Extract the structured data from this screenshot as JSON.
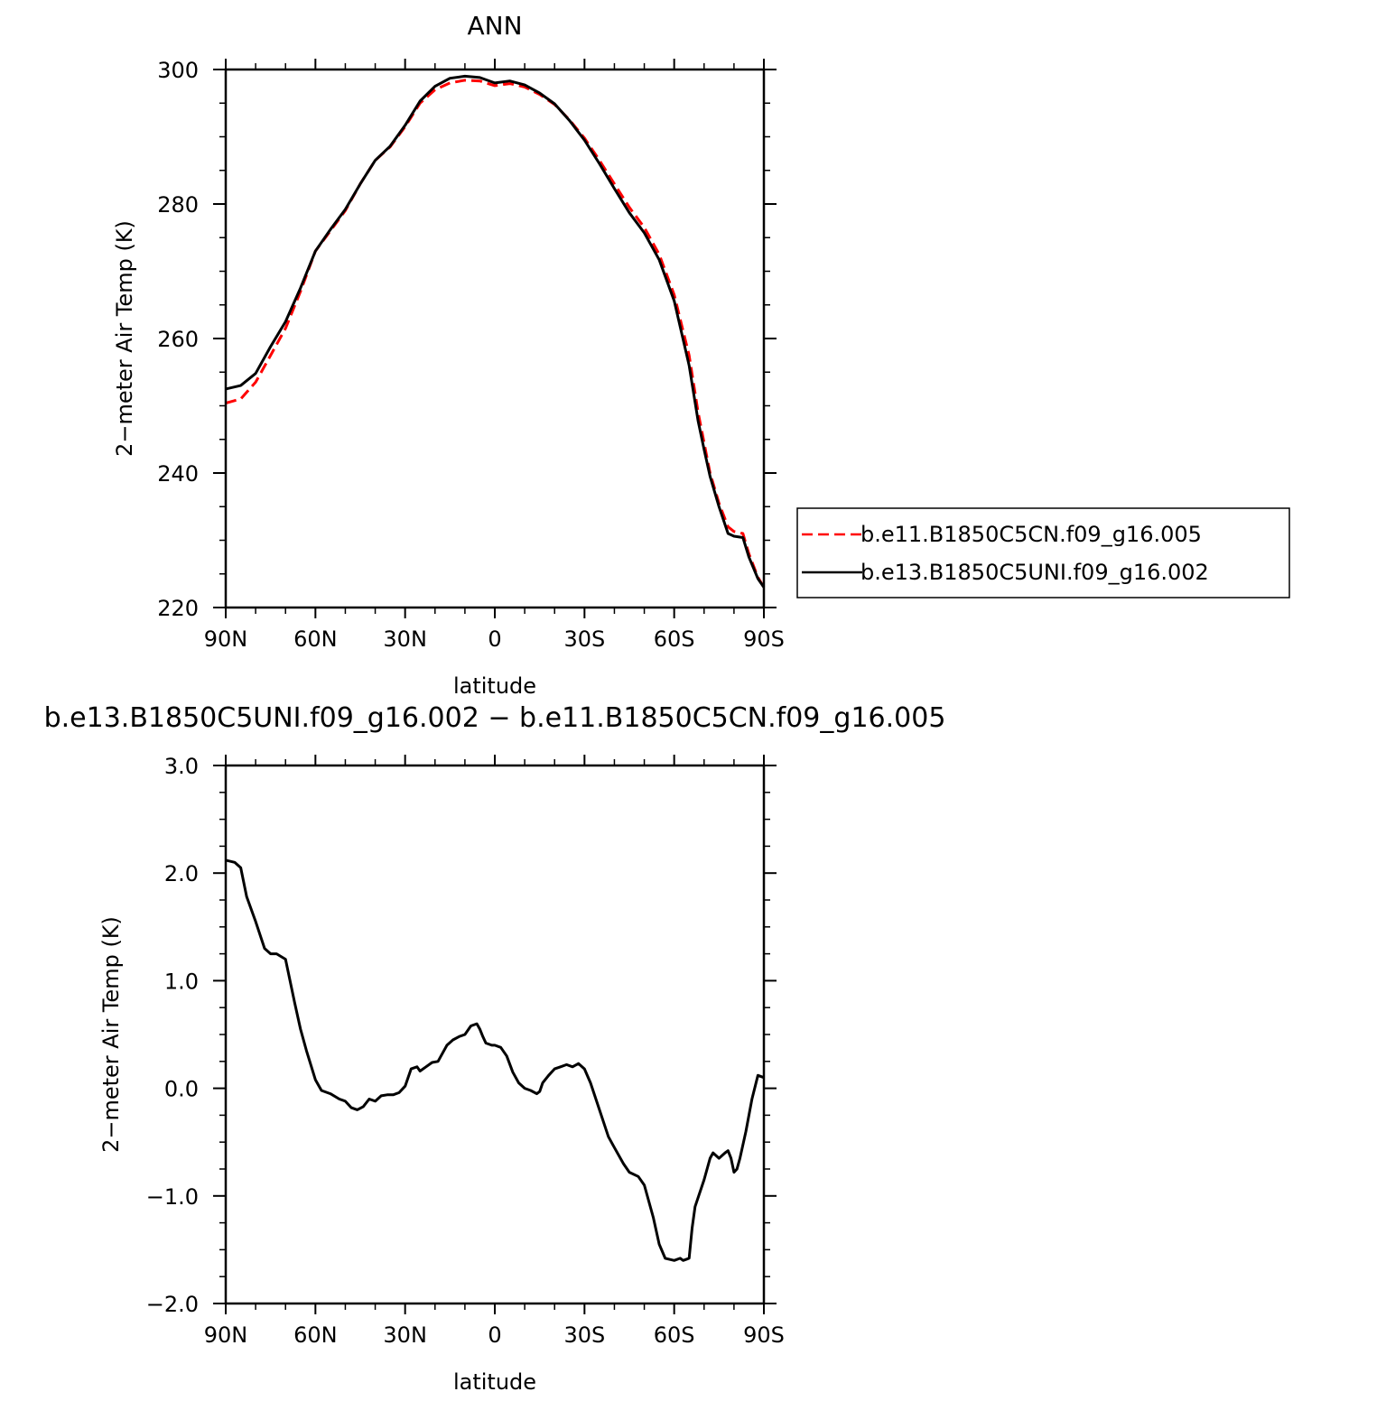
{
  "chart_data": [
    {
      "type": "line",
      "title": "ANN",
      "xlabel": "latitude",
      "ylabel": "2−meter Air Temp (K)",
      "xlim": [
        90,
        -90
      ],
      "ylim": [
        220,
        300
      ],
      "x_ticks": [
        {
          "value": 90,
          "label": "90N"
        },
        {
          "value": 60,
          "label": "60N"
        },
        {
          "value": 30,
          "label": "30N"
        },
        {
          "value": 0,
          "label": "0"
        },
        {
          "value": -30,
          "label": "30S"
        },
        {
          "value": -60,
          "label": "60S"
        },
        {
          "value": -90,
          "label": "90S"
        }
      ],
      "y_ticks": [
        {
          "value": 300,
          "label": "300"
        },
        {
          "value": 280,
          "label": "280"
        },
        {
          "value": 260,
          "label": "260"
        },
        {
          "value": 240,
          "label": "240"
        },
        {
          "value": 220,
          "label": "220"
        }
      ],
      "legend_position": "right",
      "series": [
        {
          "name": "b.e11.B1850C5CN.f09_g16.005",
          "color": "#ff0000",
          "dash": "dashed",
          "x": [
            90,
            85,
            80,
            75,
            70,
            65,
            60,
            55,
            50,
            45,
            40,
            35,
            30,
            25,
            20,
            15,
            10,
            5,
            0,
            -5,
            -10,
            -15,
            -20,
            -25,
            -30,
            -35,
            -40,
            -45,
            -50,
            -55,
            -60,
            -65,
            -68,
            -70,
            -72,
            -75,
            -78,
            -80,
            -83,
            -85,
            -88,
            -90
          ],
          "y": [
            250.4,
            251.0,
            253.5,
            257.5,
            261.5,
            267.0,
            273.0,
            276.0,
            279.0,
            283.0,
            286.5,
            288.5,
            291.5,
            295.0,
            297.0,
            298.0,
            298.4,
            298.3,
            297.6,
            297.9,
            297.4,
            296.3,
            294.8,
            292.5,
            289.8,
            286.5,
            283.0,
            279.5,
            276.5,
            272.5,
            266.5,
            257.5,
            249.0,
            244.5,
            240.0,
            235.5,
            232.0,
            231.3,
            231.0,
            228.0,
            224.5,
            223.0
          ]
        },
        {
          "name": "b.e13.B1850C5UNI.f09_g16.002",
          "color": "#000000",
          "dash": "solid",
          "x": [
            90,
            85,
            80,
            75,
            70,
            65,
            60,
            55,
            50,
            45,
            40,
            35,
            30,
            25,
            20,
            15,
            10,
            5,
            0,
            -5,
            -10,
            -15,
            -20,
            -25,
            -30,
            -35,
            -40,
            -45,
            -50,
            -55,
            -60,
            -65,
            -68,
            -70,
            -72,
            -75,
            -78,
            -80,
            -83,
            -85,
            -88,
            -90
          ],
          "y": [
            252.5,
            253.0,
            254.8,
            258.8,
            262.5,
            267.5,
            273.0,
            276.2,
            279.2,
            283.0,
            286.5,
            288.6,
            291.7,
            295.3,
            297.5,
            298.7,
            299.0,
            298.8,
            298.0,
            298.3,
            297.7,
            296.5,
            294.9,
            292.4,
            289.5,
            286.0,
            282.3,
            278.7,
            275.7,
            271.7,
            265.6,
            256.0,
            247.7,
            243.5,
            239.5,
            235.0,
            231.0,
            230.6,
            230.4,
            227.5,
            224.3,
            223.0
          ]
        }
      ]
    },
    {
      "type": "line",
      "title": "b.e13.B1850C5UNI.f09_g16.002 − b.e11.B1850C5CN.f09_g16.005",
      "xlabel": "latitude",
      "ylabel": "2−meter Air Temp (K)",
      "xlim": [
        90,
        -90
      ],
      "ylim": [
        -2.0,
        3.0
      ],
      "x_ticks": [
        {
          "value": 90,
          "label": "90N"
        },
        {
          "value": 60,
          "label": "60N"
        },
        {
          "value": 30,
          "label": "30N"
        },
        {
          "value": 0,
          "label": "0"
        },
        {
          "value": -30,
          "label": "30S"
        },
        {
          "value": -60,
          "label": "60S"
        },
        {
          "value": -90,
          "label": "90S"
        }
      ],
      "y_ticks": [
        {
          "value": 3.0,
          "label": "3.0"
        },
        {
          "value": 2.0,
          "label": "2.0"
        },
        {
          "value": 1.0,
          "label": "1.0"
        },
        {
          "value": 0.0,
          "label": "0.0"
        },
        {
          "value": -1.0,
          "label": "−1.0"
        },
        {
          "value": -2.0,
          "label": "−2.0"
        }
      ],
      "series": [
        {
          "color": "#000000",
          "dash": "solid",
          "x": [
            90,
            87,
            85,
            83,
            80,
            77,
            75,
            73,
            70,
            67,
            65,
            63,
            60,
            58,
            55,
            52,
            50,
            48,
            46,
            44,
            42,
            40,
            38,
            36,
            34,
            32,
            30,
            28,
            26,
            25,
            23,
            21,
            19,
            18,
            16,
            14,
            12,
            10,
            8,
            6,
            5,
            4,
            3,
            1,
            0,
            -2,
            -4,
            -6,
            -8,
            -10,
            -12,
            -14,
            -15,
            -16,
            -18,
            -20,
            -22,
            -24,
            -26,
            -28,
            -30,
            -32,
            -35,
            -38,
            -40,
            -43,
            -45,
            -48,
            -50,
            -53,
            -55,
            -57,
            -60,
            -62,
            -63,
            -65,
            -66,
            -67,
            -70,
            -72,
            -73,
            -75,
            -77,
            -78,
            -79,
            -80,
            -81,
            -82,
            -84,
            -86,
            -88,
            -90
          ],
          "y": [
            2.12,
            2.1,
            2.05,
            1.78,
            1.55,
            1.3,
            1.25,
            1.25,
            1.2,
            0.8,
            0.55,
            0.35,
            0.08,
            -0.02,
            -0.05,
            -0.1,
            -0.12,
            -0.18,
            -0.2,
            -0.17,
            -0.1,
            -0.12,
            -0.07,
            -0.06,
            -0.06,
            -0.04,
            0.02,
            0.18,
            0.2,
            0.16,
            0.2,
            0.24,
            0.25,
            0.3,
            0.4,
            0.45,
            0.48,
            0.5,
            0.58,
            0.6,
            0.55,
            0.48,
            0.42,
            0.4,
            0.4,
            0.38,
            0.3,
            0.15,
            0.05,
            0.0,
            -0.02,
            -0.05,
            -0.03,
            0.05,
            0.12,
            0.18,
            0.2,
            0.22,
            0.2,
            0.23,
            0.18,
            0.05,
            -0.2,
            -0.45,
            -0.55,
            -0.7,
            -0.78,
            -0.82,
            -0.9,
            -1.2,
            -1.45,
            -1.58,
            -1.6,
            -1.58,
            -1.6,
            -1.58,
            -1.3,
            -1.1,
            -0.85,
            -0.65,
            -0.6,
            -0.65,
            -0.6,
            -0.58,
            -0.65,
            -0.78,
            -0.75,
            -0.65,
            -0.4,
            -0.1,
            0.12,
            0.1
          ]
        }
      ]
    }
  ],
  "legend_entries": [
    "b.e11.B1850C5CN.f09_g16.005",
    "b.e13.B1850C5UNI.f09_g16.002"
  ]
}
